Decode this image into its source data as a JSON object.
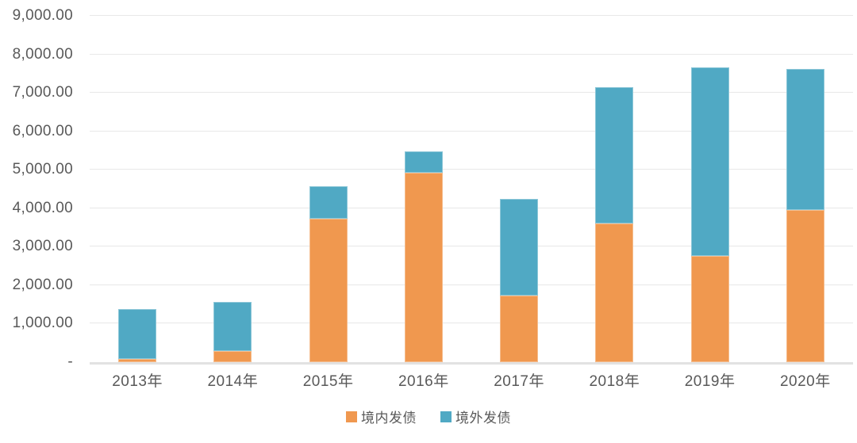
{
  "chart_data": {
    "type": "bar",
    "stacked": true,
    "title": "",
    "xlabel": "",
    "ylabel": "",
    "categories": [
      "2013年",
      "2014年",
      "2015年",
      "2016年",
      "2017年",
      "2018年",
      "2019年",
      "2020年"
    ],
    "series": [
      {
        "name": "境内发债",
        "color": "#F0984F",
        "values": [
          80,
          280,
          3720,
          4920,
          1730,
          3600,
          2750,
          3950
        ]
      },
      {
        "name": "境外发债",
        "color": "#50A9C4",
        "values": [
          1300,
          1280,
          860,
          560,
          2520,
          3550,
          4910,
          3680
        ]
      }
    ],
    "ylim": [
      0,
      9000
    ],
    "ytick_interval": 1000,
    "ytick_labels": [
      "-",
      "1,000.00",
      "2,000.00",
      "3,000.00",
      "4,000.00",
      "5,000.00",
      "6,000.00",
      "7,000.00",
      "8,000.00",
      "9,000.00"
    ],
    "grid": true,
    "legend_position": "bottom",
    "colors": {
      "background": "#ffffff",
      "gridline": "#e8e8e8",
      "baseline": "#e2e2e2",
      "axis_text": "#595959"
    }
  }
}
